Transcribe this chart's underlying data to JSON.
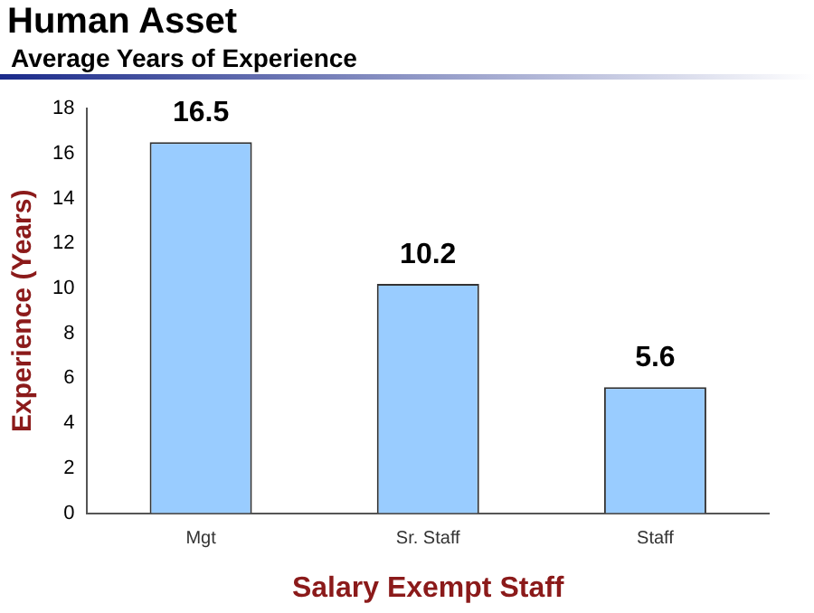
{
  "chart_data": {
    "type": "bar",
    "title": "Human Asset",
    "subtitle": "Average Years of Experience",
    "xlabel": "Salary Exempt Staff",
    "ylabel": "Experience (Years)",
    "categories": [
      "Mgt",
      "Sr. Staff",
      "Staff"
    ],
    "values": [
      16.5,
      10.2,
      5.6
    ],
    "color": "#99ccff",
    "ylim": [
      0,
      18
    ],
    "yticks": [
      0,
      2,
      4,
      6,
      8,
      10,
      12,
      14,
      16,
      18
    ],
    "grid": false,
    "legend": false,
    "data_labels": true
  }
}
